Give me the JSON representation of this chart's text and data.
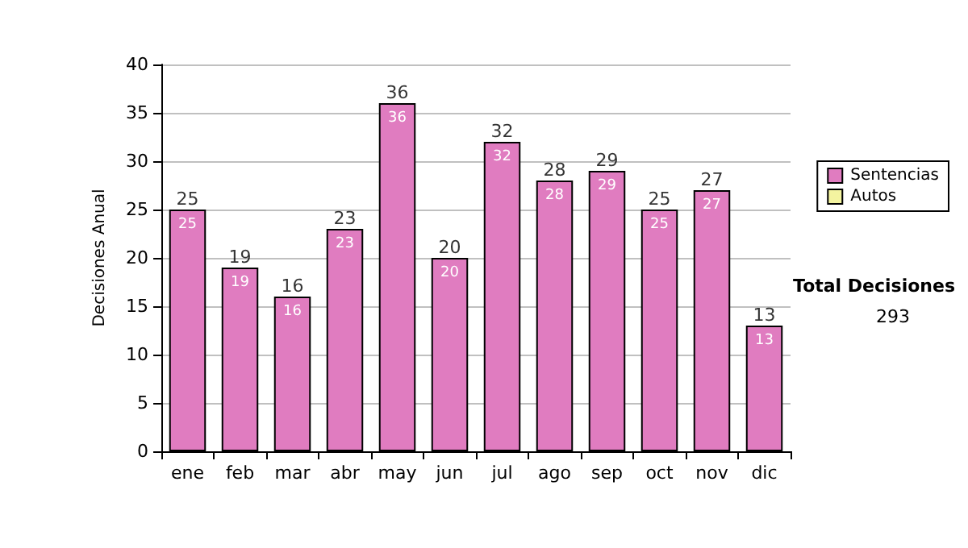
{
  "chart_data": {
    "type": "bar",
    "stacked": true,
    "ylabel": "Decisiones Anual",
    "categories": [
      "ene",
      "feb",
      "mar",
      "abr",
      "may",
      "jun",
      "jul",
      "ago",
      "sep",
      "oct",
      "nov",
      "dic"
    ],
    "series": [
      {
        "name": "Sentencias",
        "color": "#e07cc0",
        "values": [
          25,
          19,
          16,
          23,
          36,
          20,
          32,
          28,
          29,
          25,
          27,
          13
        ],
        "value_labels": [
          "25",
          "19",
          "16",
          "23",
          "36",
          "20",
          "32",
          "28",
          "29",
          "25",
          "27",
          "13"
        ]
      },
      {
        "name": "Autos",
        "color": "#f4f4a0",
        "values": [
          null,
          null,
          null,
          null,
          null,
          null,
          null,
          null,
          null,
          null,
          null,
          null
        ]
      }
    ],
    "ylim": [
      0,
      40
    ],
    "yticks": [
      0,
      5,
      10,
      15,
      20,
      25,
      30,
      35,
      40
    ],
    "totals": [
      "25",
      "19",
      "16",
      "23",
      "36",
      "20",
      "32",
      "28",
      "29",
      "25",
      "27",
      "13"
    ],
    "annotations": [
      "Total Decisiones",
      "293"
    ],
    "grid": "y",
    "legend": "right"
  }
}
